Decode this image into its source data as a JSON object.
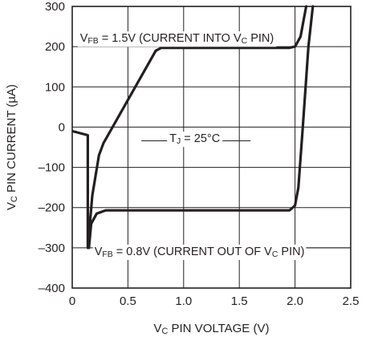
{
  "chart_data": {
    "type": "line",
    "title": "",
    "xlabel": {
      "prefix": "V",
      "sub": "C",
      "suffix": " PIN VOLTAGE (V)"
    },
    "ylabel": {
      "prefix": "V",
      "sub": "C",
      "suffix": " PIN CURRENT (µA)"
    },
    "xlim": [
      0,
      2.5
    ],
    "ylim": [
      -400,
      300
    ],
    "grid": true,
    "x_ticks": [
      0,
      0.5,
      1.0,
      1.5,
      2.0,
      2.5
    ],
    "x_tick_labels": [
      "0",
      "0.5",
      "1.0",
      "1.5",
      "2.0",
      "2.5"
    ],
    "y_ticks": [
      300,
      200,
      100,
      0,
      -100,
      -200,
      -300,
      -400
    ],
    "y_tick_labels": [
      "300",
      "200",
      "100",
      "0",
      "–100",
      "–200",
      "–300",
      "–400"
    ],
    "series": [
      {
        "name": "V_FB = 1.5V (CURRENT INTO V_C PIN)",
        "points": [
          [
            0.0,
            -10
          ],
          [
            0.14,
            -20
          ],
          [
            0.14,
            -300
          ],
          [
            0.18,
            -170
          ],
          [
            0.24,
            -70
          ],
          [
            0.28,
            -40
          ],
          [
            0.75,
            190
          ],
          [
            0.8,
            197
          ],
          [
            1.95,
            197
          ],
          [
            2.0,
            200
          ],
          [
            2.05,
            225
          ],
          [
            2.1,
            300
          ]
        ]
      },
      {
        "name": "V_FB = 0.8V (CURRENT OUT OF V_C PIN)",
        "points": [
          [
            0.15,
            -300
          ],
          [
            0.17,
            -240
          ],
          [
            0.22,
            -215
          ],
          [
            0.3,
            -207
          ],
          [
            1.95,
            -207
          ],
          [
            2.0,
            -195
          ],
          [
            2.03,
            -150
          ],
          [
            2.07,
            0
          ],
          [
            2.12,
            200
          ],
          [
            2.16,
            300
          ]
        ]
      }
    ],
    "annotations": [
      {
        "id": "fb15",
        "parts": [
          [
            "V",
            ""
          ],
          [
            "FB",
            "sub"
          ],
          [
            " = 1.5V (CURRENT INTO V",
            ""
          ],
          [
            "C",
            "sub"
          ],
          [
            " PIN)",
            ""
          ]
        ]
      },
      {
        "id": "tj",
        "parts": [
          [
            "T",
            ""
          ],
          [
            "J",
            "sub"
          ],
          [
            " = 25°C",
            ""
          ]
        ]
      },
      {
        "id": "fb08",
        "parts": [
          [
            "V",
            ""
          ],
          [
            "FB",
            "sub"
          ],
          [
            " = 0.8V (CURRENT OUT OF V",
            ""
          ],
          [
            "C",
            "sub"
          ],
          [
            " PIN)",
            ""
          ]
        ]
      }
    ]
  }
}
